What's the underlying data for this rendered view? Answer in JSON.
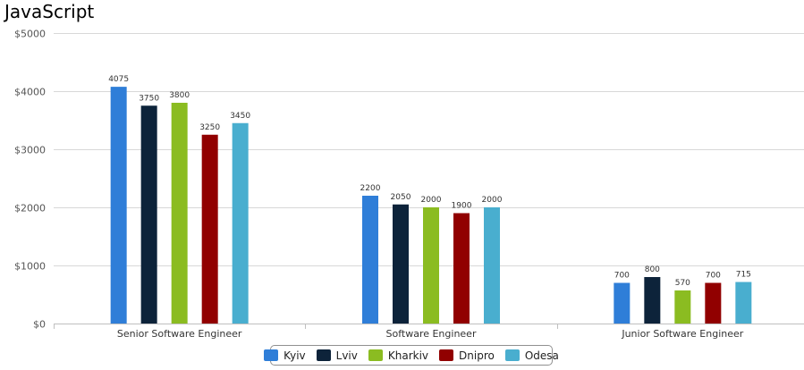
{
  "chart_data": {
    "type": "bar",
    "title": "JavaScript",
    "categories": [
      "Senior Software Engineer",
      "Software Engineer",
      "Junior Software Engineer"
    ],
    "series": [
      {
        "name": "Kyiv",
        "color": "#2f7ed8",
        "values": [
          4075,
          2200,
          700
        ]
      },
      {
        "name": "Lviv",
        "color": "#0d233a",
        "values": [
          3750,
          2050,
          800
        ]
      },
      {
        "name": "Kharkiv",
        "color": "#8bbc21",
        "values": [
          3800,
          2000,
          570
        ]
      },
      {
        "name": "Dnipro",
        "color": "#910000",
        "values": [
          3250,
          1900,
          700
        ]
      },
      {
        "name": "Odesa",
        "color": "#49aecf",
        "values": [
          3450,
          2000,
          715
        ]
      }
    ],
    "ylim": [
      0,
      5000
    ],
    "yticks": [
      0,
      1000,
      2000,
      3000,
      4000,
      5000
    ],
    "ytick_labels": [
      "$0",
      "$1000",
      "$2000",
      "$3000",
      "$4000",
      "$5000"
    ],
    "grid": true,
    "legend_position": "bottom-center"
  }
}
